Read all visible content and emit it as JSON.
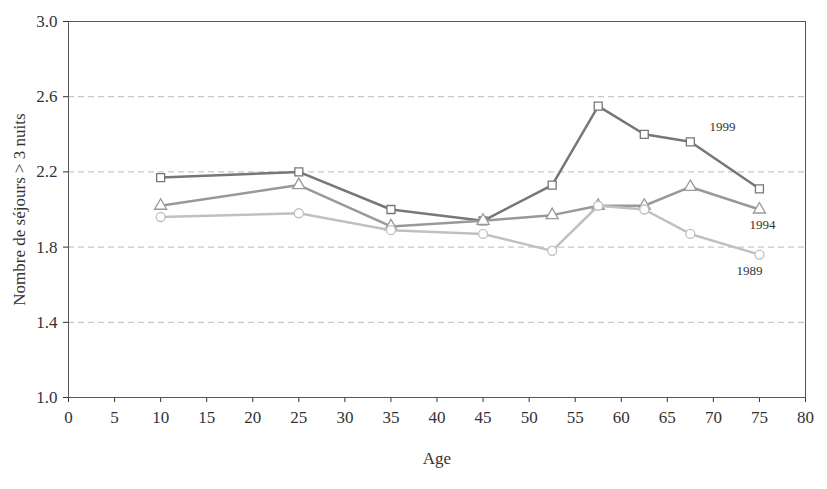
{
  "chart_data": {
    "type": "line",
    "x_label": "Age",
    "y_label": "Nombre de séjours > 3 nuits",
    "x": [
      10,
      25,
      35,
      45,
      52.5,
      57.5,
      62.5,
      67.5,
      75
    ],
    "series": [
      {
        "name": "1999",
        "color": "#777777",
        "marker": "square",
        "values": [
          2.17,
          2.2,
          2.0,
          1.94,
          2.13,
          2.55,
          2.4,
          2.36,
          2.11
        ]
      },
      {
        "name": "1994",
        "color": "#999999",
        "marker": "triangle",
        "values": [
          2.02,
          2.13,
          1.91,
          1.94,
          1.97,
          2.02,
          2.02,
          2.12,
          2.0
        ]
      },
      {
        "name": "1989",
        "color": "#c0c0c0",
        "marker": "circle",
        "values": [
          1.96,
          1.98,
          1.89,
          1.87,
          1.78,
          2.02,
          2.0,
          1.87,
          1.76
        ]
      }
    ],
    "xlim": [
      0,
      80
    ],
    "xticks": [
      0,
      5,
      10,
      15,
      20,
      25,
      30,
      35,
      40,
      45,
      50,
      55,
      60,
      65,
      70,
      75,
      80
    ],
    "ylim": [
      1.0,
      3.0
    ],
    "yticks": [
      {
        "value": 1.0,
        "label": "1.0"
      },
      1.4,
      1.8,
      2.2,
      2.6,
      {
        "value": 3.0,
        "label": "3.0"
      }
    ],
    "grid": true
  }
}
